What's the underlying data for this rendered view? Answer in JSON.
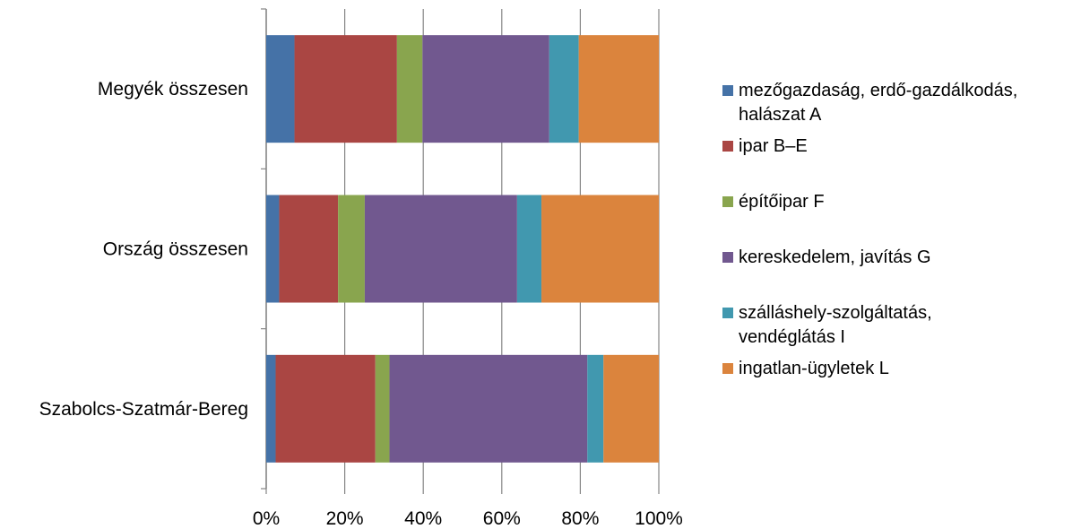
{
  "chart_data": {
    "type": "bar",
    "orientation": "horizontal",
    "stacked": "percent",
    "categories": [
      "Szabolcs-Szatmár-Bereg",
      "Ország összesen",
      "Megyék összesen"
    ],
    "series": [
      {
        "name": "mezőgazdaság, erdő-gazdálkodás, halászat A",
        "color": "#4572a7",
        "values": [
          2.4,
          3.3,
          7.2
        ]
      },
      {
        "name": "ipar B–E",
        "color": "#aa4643",
        "values": [
          25.4,
          15.0,
          26.1
        ]
      },
      {
        "name": "építőipar F",
        "color": "#89a54e",
        "values": [
          3.6,
          6.8,
          6.5
        ]
      },
      {
        "name": "kereskedelem, javítás G",
        "color": "#71588f",
        "values": [
          50.4,
          38.8,
          32.3
        ]
      },
      {
        "name": "szálláshely-szolgáltatás, vendéglátás I",
        "color": "#4198af",
        "values": [
          4.1,
          6.2,
          7.5
        ]
      },
      {
        "name": "ingatlan-ügyletek L",
        "color": "#db843d",
        "values": [
          14.1,
          29.9,
          20.4
        ]
      }
    ],
    "xlim": [
      0,
      100
    ],
    "xticks": [
      "0%",
      "20%",
      "40%",
      "60%",
      "80%",
      "100%"
    ],
    "grid": "vertical",
    "legend": "right"
  }
}
